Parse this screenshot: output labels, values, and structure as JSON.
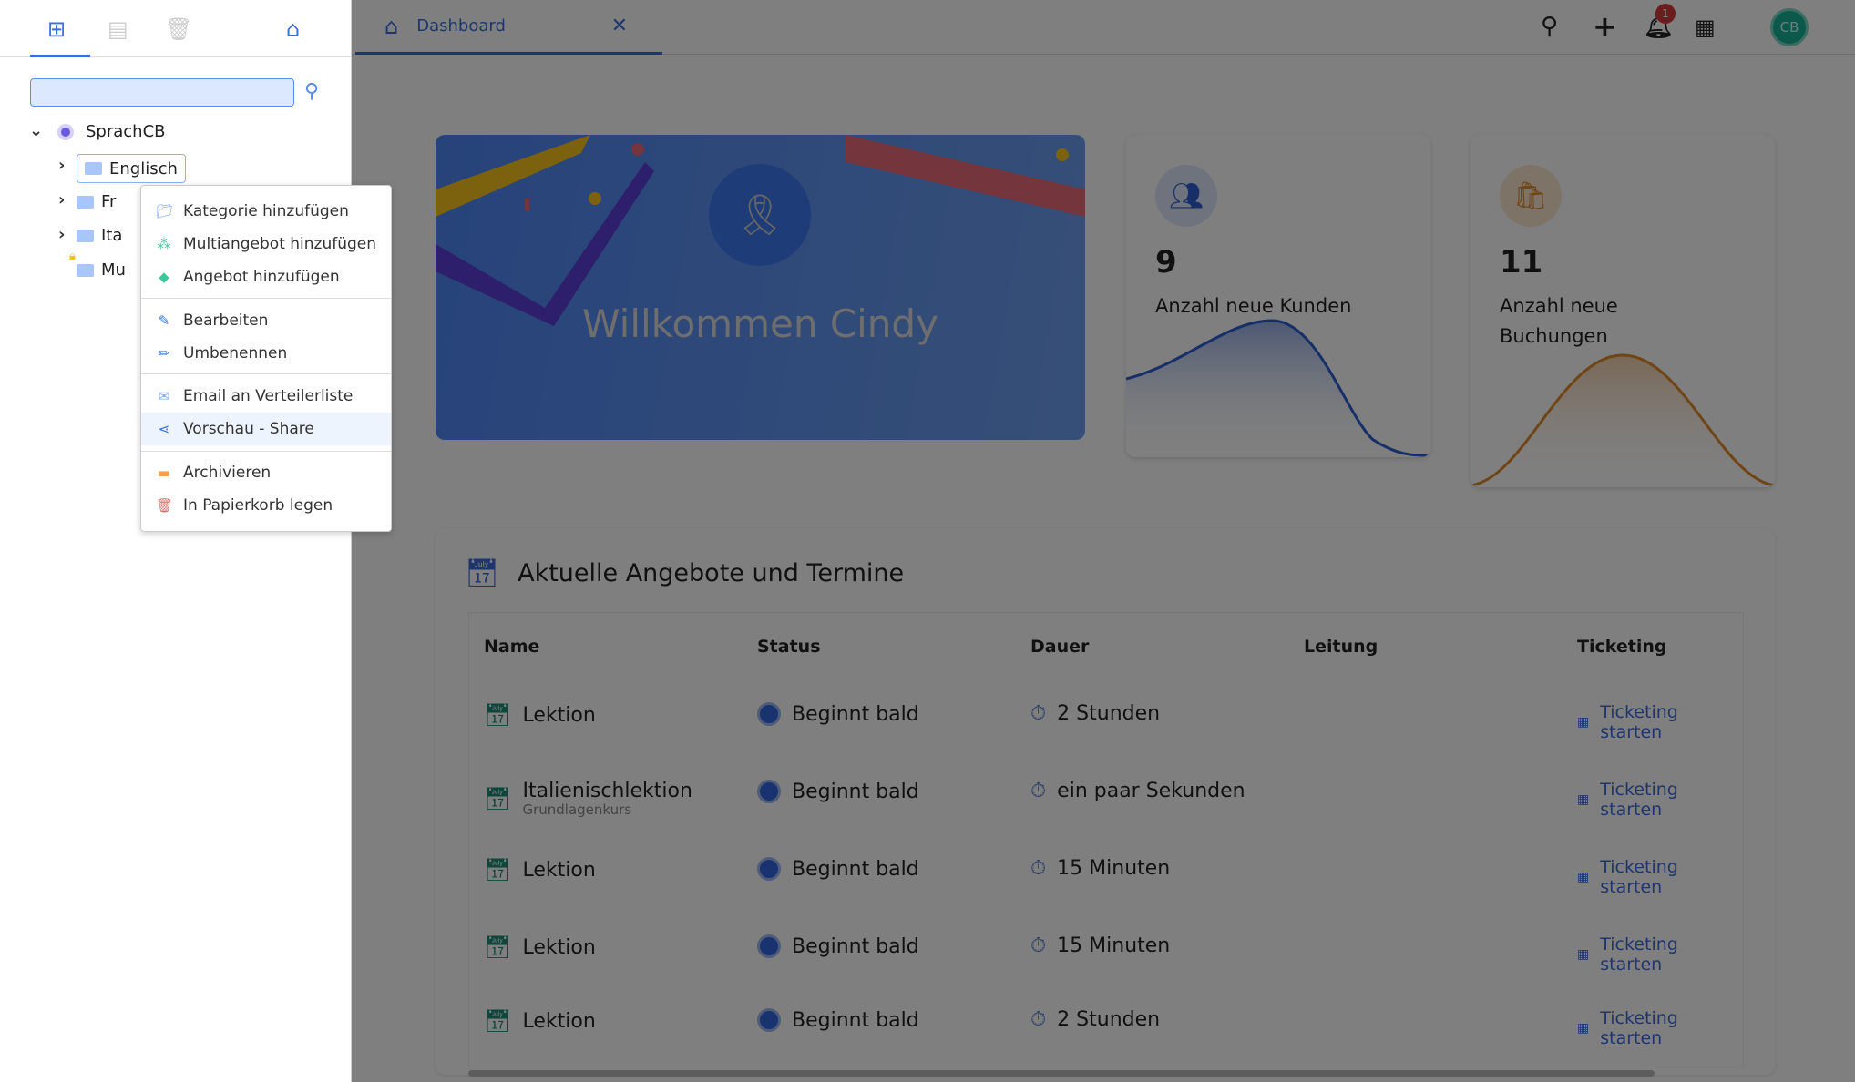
{
  "sidebar": {
    "tabs": [
      "tree-icon",
      "archive-icon",
      "trash-icon",
      "home-icon"
    ],
    "search": {
      "value": "",
      "placeholder": ""
    },
    "tree": {
      "root": "SprachCB",
      "items": [
        {
          "label": "Englisch"
        },
        {
          "label": "Fr"
        },
        {
          "label": "Ita"
        },
        {
          "label": "Mu"
        }
      ]
    }
  },
  "context_menu": {
    "items": [
      {
        "label": "Kategorie hinzufügen",
        "icon": "folder-plus-icon"
      },
      {
        "label": "Multiangebot hinzufügen",
        "icon": "cubes-icon"
      },
      {
        "label": "Angebot hinzufügen",
        "icon": "cube-icon"
      },
      {
        "label": "Bearbeiten",
        "icon": "edit-icon"
      },
      {
        "label": "Umbenennen",
        "icon": "pencil-icon"
      },
      {
        "label": "Email an Verteilerliste",
        "icon": "envelope-icon"
      },
      {
        "label": "Vorschau - Share",
        "icon": "share-icon"
      },
      {
        "label": "Archivieren",
        "icon": "archive-icon"
      },
      {
        "label": "In Papierkorb legen",
        "icon": "trash-icon"
      }
    ],
    "highlighted": "Vorschau - Share"
  },
  "header": {
    "tab": "Dashboard",
    "notifications": "1",
    "avatar": "CB"
  },
  "banner": {
    "title": "Willkommen Cindy"
  },
  "stats": [
    {
      "value": "9",
      "label": "Anzahl neue Kunden",
      "color": "#2f5fd0"
    },
    {
      "value": "11",
      "label": "Anzahl neue Buchungen",
      "color": "#e08a2c"
    }
  ],
  "table": {
    "title": "Aktuelle Angebote und Termine",
    "columns": [
      "Name",
      "Status",
      "Dauer",
      "Leitung",
      "Ticketing"
    ],
    "rows": [
      {
        "name": "Lektion",
        "sub": "",
        "status": "Beginnt bald",
        "duration": "2 Stunden",
        "lead": "",
        "ticket": "Ticketing starten"
      },
      {
        "name": "Italienischlektion",
        "sub": "Grundlagenkurs",
        "status": "Beginnt bald",
        "duration": "ein paar Sekunden",
        "lead": "",
        "ticket": "Ticketing starten"
      },
      {
        "name": "Lektion",
        "sub": "",
        "status": "Beginnt bald",
        "duration": "15 Minuten",
        "lead": "",
        "ticket": "Ticketing starten"
      },
      {
        "name": "Lektion",
        "sub": "",
        "status": "Beginnt bald",
        "duration": "15 Minuten",
        "lead": "",
        "ticket": "Ticketing starten"
      },
      {
        "name": "Lektion",
        "sub": "",
        "status": "Beginnt bald",
        "duration": "2 Stunden",
        "lead": "",
        "ticket": "Ticketing starten"
      }
    ]
  }
}
